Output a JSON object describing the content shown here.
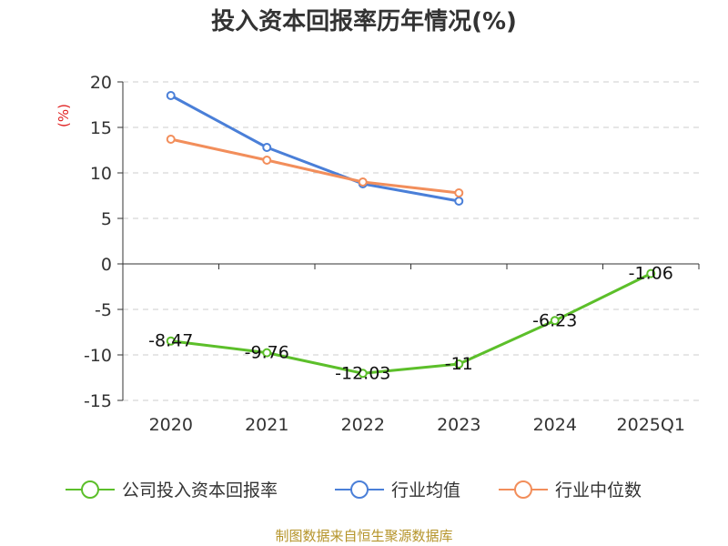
{
  "chart_data": {
    "type": "line",
    "title": "投入资本回报率历年情况(%)",
    "ylabel": "(%)",
    "xlabel": "",
    "categories": [
      "2020",
      "2021",
      "2022",
      "2023",
      "2024",
      "2025Q1"
    ],
    "ylim": [
      -15,
      20
    ],
    "yticks": [
      20,
      15,
      10,
      5,
      0,
      -5,
      -10,
      -15
    ],
    "grid": true,
    "legend_position": "bottom",
    "series": [
      {
        "name": "公司投入资本回报率",
        "color": "#5cbf2a",
        "values": [
          -8.47,
          -9.76,
          -12.03,
          -11,
          -6.23,
          -1.06
        ],
        "labels": [
          "-8.47",
          "-9.76",
          "-12.03",
          "-11",
          "-6.23",
          "-1.06"
        ],
        "show_labels": true
      },
      {
        "name": "行业均值",
        "color": "#4a7fd8",
        "values": [
          18.5,
          12.8,
          8.8,
          6.9,
          null,
          null
        ],
        "show_labels": false
      },
      {
        "name": "行业中位数",
        "color": "#f28e5b",
        "values": [
          13.7,
          11.4,
          9.0,
          7.8,
          null,
          null
        ],
        "show_labels": false
      }
    ],
    "source": "制图数据来自恒生聚源数据库"
  }
}
